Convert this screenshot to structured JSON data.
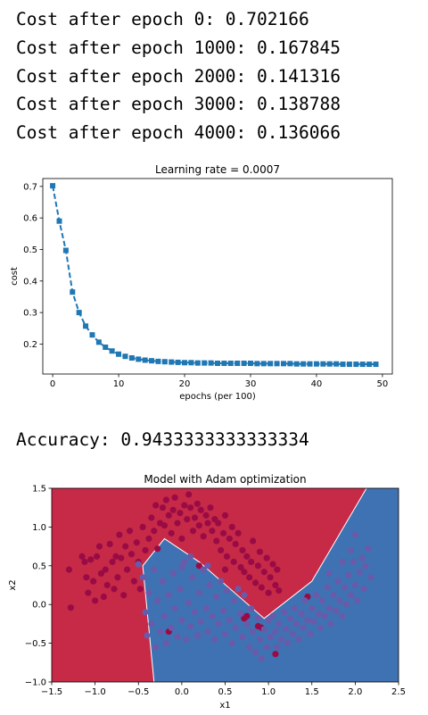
{
  "log_lines": [
    "Cost after epoch 0: 0.702166",
    "Cost after epoch 1000: 0.167845",
    "Cost after epoch 2000: 0.141316",
    "Cost after epoch 3000: 0.138788",
    "Cost after epoch 4000: 0.136066"
  ],
  "accuracy_text": "Accuracy: 0.9433333333333334",
  "chart_data": [
    {
      "type": "line",
      "title": "Learning rate = 0.0007",
      "xlabel": "epochs (per 100)",
      "ylabel": "cost",
      "xlim": [
        -1.5,
        51.5
      ],
      "ylim": [
        0.105,
        0.725
      ],
      "xticks": [
        0,
        10,
        20,
        30,
        40,
        50
      ],
      "yticks": [
        0.2,
        0.3,
        0.4,
        0.5,
        0.6,
        0.7
      ],
      "grid": false,
      "color": "#1f77b4",
      "line_style": "dashed",
      "marker": "square",
      "x": [
        0,
        1,
        2,
        3,
        4,
        5,
        6,
        7,
        8,
        9,
        10,
        11,
        12,
        13,
        14,
        15,
        16,
        17,
        18,
        19,
        20,
        21,
        22,
        23,
        24,
        25,
        26,
        27,
        28,
        29,
        30,
        31,
        32,
        33,
        34,
        35,
        36,
        37,
        38,
        39,
        40,
        41,
        42,
        43,
        44,
        45,
        46,
        47,
        48,
        49
      ],
      "y": [
        0.702,
        0.59,
        0.497,
        0.365,
        0.3,
        0.257,
        0.229,
        0.206,
        0.19,
        0.178,
        0.168,
        0.161,
        0.156,
        0.152,
        0.149,
        0.147,
        0.145,
        0.144,
        0.143,
        0.142,
        0.141,
        0.141,
        0.14,
        0.14,
        0.14,
        0.139,
        0.139,
        0.139,
        0.139,
        0.139,
        0.139,
        0.138,
        0.138,
        0.138,
        0.138,
        0.138,
        0.138,
        0.137,
        0.137,
        0.137,
        0.137,
        0.137,
        0.137,
        0.137,
        0.136,
        0.136,
        0.136,
        0.136,
        0.136,
        0.136
      ]
    },
    {
      "type": "scatter",
      "title": "Model with Adam optimization",
      "xlabel": "x1",
      "ylabel": "x2",
      "xlim": [
        -1.5,
        2.5
      ],
      "ylim": [
        -1.0,
        1.5
      ],
      "xticks": [
        -1.5,
        -1.0,
        -0.5,
        0.0,
        0.5,
        1.0,
        1.5,
        2.0,
        2.5
      ],
      "yticks": [
        -1.0,
        -0.5,
        0.0,
        0.5,
        1.0,
        1.5
      ],
      "region_colors": {
        "class_0": "#c62a47",
        "class_1": "#3f72b2"
      },
      "point_colors": {
        "class_0": "#9a0b45",
        "class_1": "#6a5aaa"
      },
      "decision_boundary": [
        [
          -0.32,
          -1.0
        ],
        [
          -0.45,
          0.5
        ],
        [
          -0.2,
          0.85
        ],
        [
          0.2,
          0.55
        ],
        [
          0.95,
          -0.18
        ],
        [
          1.5,
          0.3
        ],
        [
          2.13,
          1.5
        ]
      ],
      "class_0_points": [
        [
          -1.3,
          0.45
        ],
        [
          -1.28,
          -0.04
        ],
        [
          -1.15,
          0.62
        ],
        [
          -1.12,
          0.55
        ],
        [
          -1.1,
          0.35
        ],
        [
          -1.08,
          0.15
        ],
        [
          -1.05,
          0.58
        ],
        [
          -1.02,
          0.3
        ],
        [
          -1.0,
          0.05
        ],
        [
          -0.98,
          0.62
        ],
        [
          -0.95,
          0.75
        ],
        [
          -0.93,
          0.4
        ],
        [
          -0.9,
          0.1
        ],
        [
          -0.88,
          0.45
        ],
        [
          -0.86,
          0.25
        ],
        [
          -0.83,
          0.78
        ],
        [
          -0.8,
          0.55
        ],
        [
          -0.78,
          0.2
        ],
        [
          -0.76,
          0.62
        ],
        [
          -0.74,
          0.35
        ],
        [
          -0.72,
          0.9
        ],
        [
          -0.7,
          0.6
        ],
        [
          -0.67,
          0.12
        ],
        [
          -0.65,
          0.75
        ],
        [
          -0.63,
          0.45
        ],
        [
          -0.6,
          0.95
        ],
        [
          -0.58,
          0.65
        ],
        [
          -0.55,
          0.3
        ],
        [
          -0.52,
          0.8
        ],
        [
          -0.5,
          0.55
        ],
        [
          -0.48,
          0.2
        ],
        [
          -0.45,
          1.0
        ],
        [
          -0.42,
          0.7
        ],
        [
          -0.38,
          0.85
        ],
        [
          -0.35,
          1.12
        ],
        [
          -0.32,
          0.95
        ],
        [
          -0.3,
          1.28
        ],
        [
          -0.28,
          0.72
        ],
        [
          -0.25,
          1.05
        ],
        [
          -0.22,
          1.25
        ],
        [
          -0.2,
          1.02
        ],
        [
          -0.18,
          1.35
        ],
        [
          -0.15,
          1.15
        ],
        [
          -0.12,
          0.92
        ],
        [
          -0.1,
          1.22
        ],
        [
          -0.08,
          1.38
        ],
        [
          -0.05,
          1.05
        ],
        [
          -0.02,
          1.18
        ],
        [
          0.0,
          0.85
        ],
        [
          0.03,
          1.28
        ],
        [
          0.06,
          1.1
        ],
        [
          0.08,
          1.42
        ],
        [
          0.1,
          1.25
        ],
        [
          0.13,
          0.95
        ],
        [
          0.15,
          1.12
        ],
        [
          0.18,
          1.3
        ],
        [
          0.2,
          1.02
        ],
        [
          0.22,
          1.22
        ],
        [
          0.25,
          0.88
        ],
        [
          0.28,
          1.15
        ],
        [
          0.3,
          1.05
        ],
        [
          0.33,
          1.25
        ],
        [
          0.35,
          0.95
        ],
        [
          0.38,
          1.1
        ],
        [
          0.4,
          0.82
        ],
        [
          0.42,
          1.05
        ],
        [
          0.45,
          0.7
        ],
        [
          0.48,
          0.92
        ],
        [
          0.5,
          1.15
        ],
        [
          0.52,
          0.62
        ],
        [
          0.55,
          0.85
        ],
        [
          0.58,
          1.0
        ],
        [
          0.6,
          0.55
        ],
        [
          0.62,
          0.78
        ],
        [
          0.65,
          0.92
        ],
        [
          0.68,
          0.48
        ],
        [
          0.7,
          0.7
        ],
        [
          0.72,
          0.42
        ],
        [
          0.75,
          0.62
        ],
        [
          0.78,
          0.35
        ],
        [
          0.8,
          0.55
        ],
        [
          0.82,
          0.82
        ],
        [
          0.85,
          0.28
        ],
        [
          0.88,
          0.5
        ],
        [
          0.9,
          0.68
        ],
        [
          0.92,
          0.22
        ],
        [
          0.95,
          0.42
        ],
        [
          0.98,
          0.6
        ],
        [
          1.0,
          0.15
        ],
        [
          1.02,
          0.35
        ],
        [
          1.05,
          0.52
        ],
        [
          1.08,
          0.25
        ],
        [
          1.1,
          0.45
        ],
        [
          1.12,
          0.18
        ],
        [
          0.2,
          0.5
        ],
        [
          0.5,
          0.45
        ],
        [
          0.72,
          -0.18
        ],
        [
          0.75,
          -0.15
        ],
        [
          0.88,
          -0.28
        ],
        [
          0.92,
          -0.3
        ],
        [
          1.08,
          -0.64
        ],
        [
          1.45,
          0.1
        ],
        [
          -0.15,
          -0.35
        ]
      ],
      "class_1_points": [
        [
          -0.5,
          0.52
        ],
        [
          -0.45,
          0.35
        ],
        [
          -0.42,
          -0.1
        ],
        [
          -0.4,
          -0.4
        ],
        [
          -0.38,
          0.15
        ],
        [
          -0.35,
          -0.25
        ],
        [
          -0.32,
          0.45
        ],
        [
          -0.3,
          -0.55
        ],
        [
          -0.28,
          0.05
        ],
        [
          -0.25,
          -0.35
        ],
        [
          -0.22,
          0.3
        ],
        [
          -0.2,
          -0.15
        ],
        [
          -0.18,
          -0.5
        ],
        [
          -0.15,
          0.12
        ],
        [
          -0.12,
          -0.3
        ],
        [
          -0.1,
          0.4
        ],
        [
          -0.08,
          -0.05
        ],
        [
          -0.05,
          -0.42
        ],
        [
          -0.02,
          0.2
        ],
        [
          0.0,
          -0.2
        ],
        [
          0.03,
          0.55
        ],
        [
          0.05,
          -0.45
        ],
        [
          0.08,
          0.02
        ],
        [
          0.1,
          -0.28
        ],
        [
          0.12,
          0.35
        ],
        [
          0.15,
          -0.1
        ],
        [
          0.18,
          -0.4
        ],
        [
          0.2,
          0.15
        ],
        [
          0.22,
          -0.22
        ],
        [
          0.25,
          0.45
        ],
        [
          0.28,
          -0.05
        ],
        [
          0.3,
          -0.35
        ],
        [
          0.32,
          0.25
        ],
        [
          0.35,
          -0.15
        ],
        [
          0.38,
          -0.45
        ],
        [
          0.4,
          0.1
        ],
        [
          0.42,
          -0.25
        ],
        [
          0.45,
          0.3
        ],
        [
          0.48,
          -0.08
        ],
        [
          0.5,
          -0.38
        ],
        [
          0.52,
          0.18
        ],
        [
          0.55,
          -0.2
        ],
        [
          0.58,
          -0.5
        ],
        [
          0.6,
          0.05
        ],
        [
          0.62,
          -0.3
        ],
        [
          0.65,
          0.2
        ],
        [
          0.68,
          -0.12
        ],
        [
          0.7,
          -0.42
        ],
        [
          0.72,
          0.12
        ],
        [
          0.75,
          -0.25
        ],
        [
          0.78,
          -0.55
        ],
        [
          0.8,
          -0.05
        ],
        [
          0.82,
          -0.35
        ],
        [
          0.85,
          -0.62
        ],
        [
          0.88,
          -0.18
        ],
        [
          0.9,
          -0.45
        ],
        [
          0.92,
          -0.7
        ],
        [
          0.95,
          -0.32
        ],
        [
          0.98,
          -0.55
        ],
        [
          1.0,
          -0.2
        ],
        [
          1.02,
          -0.42
        ],
        [
          1.05,
          -0.15
        ],
        [
          1.08,
          -0.35
        ],
        [
          1.1,
          -0.55
        ],
        [
          1.12,
          -0.25
        ],
        [
          1.15,
          -0.45
        ],
        [
          1.18,
          -0.1
        ],
        [
          1.2,
          -0.32
        ],
        [
          1.22,
          -0.5
        ],
        [
          1.25,
          -0.18
        ],
        [
          1.28,
          -0.38
        ],
        [
          1.3,
          -0.05
        ],
        [
          1.32,
          -0.25
        ],
        [
          1.35,
          -0.45
        ],
        [
          1.38,
          -0.12
        ],
        [
          1.4,
          -0.3
        ],
        [
          1.42,
          0.05
        ],
        [
          1.45,
          -0.2
        ],
        [
          1.48,
          -0.38
        ],
        [
          1.5,
          -0.05
        ],
        [
          1.52,
          -0.22
        ],
        [
          1.55,
          0.12
        ],
        [
          1.58,
          -0.12
        ],
        [
          1.6,
          -0.3
        ],
        [
          1.62,
          0.05
        ],
        [
          1.65,
          -0.15
        ],
        [
          1.68,
          0.22
        ],
        [
          1.7,
          -0.05
        ],
        [
          1.72,
          -0.25
        ],
        [
          1.75,
          0.12
        ],
        [
          1.78,
          -0.08
        ],
        [
          1.8,
          0.3
        ],
        [
          1.82,
          0.05
        ],
        [
          1.85,
          -0.15
        ],
        [
          1.88,
          0.22
        ],
        [
          1.9,
          0.0
        ],
        [
          1.92,
          0.38
        ],
        [
          1.95,
          0.12
        ],
        [
          1.98,
          0.55
        ],
        [
          2.0,
          0.25
        ],
        [
          2.02,
          0.05
        ],
        [
          2.05,
          0.42
        ],
        [
          2.08,
          0.6
        ],
        [
          2.1,
          0.2
        ],
        [
          2.12,
          0.5
        ],
        [
          2.15,
          0.72
        ],
        [
          2.18,
          0.35
        ],
        [
          1.95,
          0.7
        ],
        [
          1.85,
          0.55
        ],
        [
          1.7,
          0.4
        ],
        [
          2.0,
          0.9
        ],
        [
          0.1,
          0.62
        ],
        [
          0.0,
          0.48
        ],
        [
          0.3,
          0.5
        ]
      ]
    }
  ]
}
